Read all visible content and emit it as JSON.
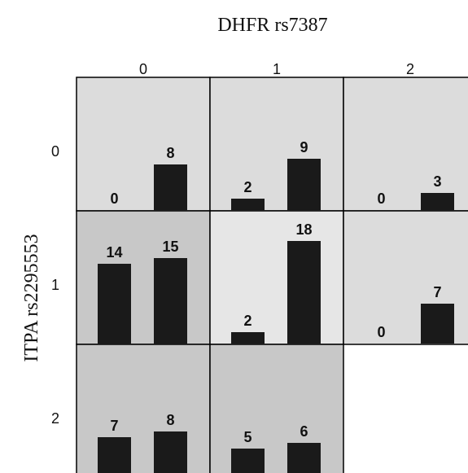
{
  "chart_data": {
    "type": "bar",
    "title": "DHFR rs7387",
    "ylabel": "ITPA rs2295553",
    "column_labels": [
      "0",
      "1",
      "2"
    ],
    "row_labels": [
      "0",
      "1",
      "2"
    ],
    "ylim": [
      0,
      20
    ],
    "cells": [
      {
        "row": "0",
        "col": "0",
        "values": [
          0,
          8
        ],
        "shade": "#dcdcdc"
      },
      {
        "row": "0",
        "col": "1",
        "values": [
          2,
          9
        ],
        "shade": "#dcdcdc"
      },
      {
        "row": "0",
        "col": "2",
        "values": [
          0,
          3
        ],
        "shade": "#dcdcdc"
      },
      {
        "row": "1",
        "col": "0",
        "values": [
          14,
          15
        ],
        "shade": "#c8c8c8"
      },
      {
        "row": "1",
        "col": "1",
        "values": [
          2,
          18
        ],
        "shade": "#e6e6e6"
      },
      {
        "row": "1",
        "col": "2",
        "values": [
          0,
          7
        ],
        "shade": "#dcdcdc"
      },
      {
        "row": "2",
        "col": "0",
        "values": [
          7,
          8
        ],
        "shade": "#c8c8c8"
      },
      {
        "row": "2",
        "col": "1",
        "values": [
          5,
          6
        ],
        "shade": "#c8c8c8"
      }
    ]
  },
  "colors": {
    "bar": "#1a1a1a",
    "grid_line": "#000000",
    "text": "#111111"
  }
}
